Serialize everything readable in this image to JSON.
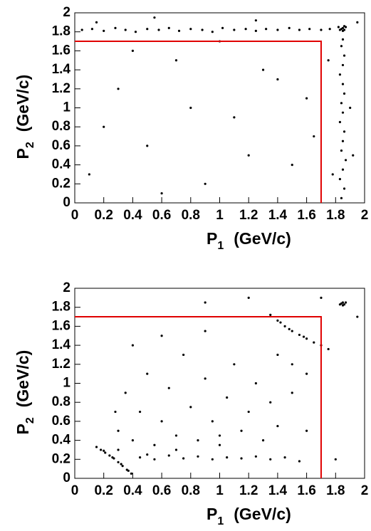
{
  "chart_data": [
    {
      "type": "scatter",
      "xlabel": "P",
      "xlabel_sub": "1",
      "xlabel_unit": "(GeV/c)",
      "ylabel": "P",
      "ylabel_sub": "2",
      "ylabel_unit": "(GeV/c)",
      "color": "#000000",
      "cut": 1.7,
      "cut_color": "#e00000",
      "xlim": [
        0,
        2
      ],
      "ylim": [
        0,
        2
      ],
      "xticks": [
        0,
        0.2,
        0.4,
        0.6,
        0.8,
        1,
        1.2,
        1.4,
        1.6,
        1.8,
        2
      ],
      "yticks": [
        0,
        0.2,
        0.4,
        0.6,
        0.8,
        1,
        1.2,
        1.4,
        1.6,
        1.8,
        2
      ],
      "x": [
        0.05,
        0.12,
        0.2,
        0.28,
        0.35,
        0.42,
        0.5,
        0.58,
        0.65,
        0.72,
        0.8,
        0.88,
        0.95,
        1.02,
        1.1,
        1.18,
        1.25,
        1.32,
        1.4,
        1.48,
        1.55,
        1.62,
        1.7,
        1.76,
        1.84,
        1.86,
        1.83,
        1.85,
        1.87,
        1.84,
        1.85,
        1.86,
        1.83,
        1.85,
        1.84,
        1.86,
        1.85,
        1.83,
        1.85,
        1.86,
        1.84,
        1.85,
        1.84,
        1.85,
        1.86,
        1.83,
        1.87,
        1.85,
        1.82,
        1.86,
        0.1,
        0.3,
        0.5,
        0.7,
        0.9,
        1.1,
        1.3,
        1.5,
        1.6,
        0.2,
        0.4,
        0.6,
        0.8,
        1.0,
        1.2,
        1.4,
        1.65,
        1.75,
        1.78,
        1.9,
        1.95,
        0.15,
        0.55,
        1.25,
        1.92
      ],
      "values": [
        1.82,
        1.83,
        1.81,
        1.84,
        1.82,
        1.8,
        1.83,
        1.82,
        1.84,
        1.81,
        1.83,
        1.82,
        1.8,
        1.84,
        1.82,
        1.83,
        1.81,
        1.83,
        1.82,
        1.84,
        1.82,
        1.83,
        1.82,
        1.83,
        0.05,
        0.15,
        0.25,
        0.35,
        0.45,
        0.55,
        0.65,
        0.75,
        0.85,
        0.95,
        1.05,
        1.15,
        1.25,
        1.35,
        1.45,
        1.55,
        1.65,
        1.72,
        1.83,
        1.84,
        1.82,
        1.82,
        1.85,
        1.81,
        1.85,
        1.86,
        0.3,
        1.2,
        0.6,
        1.5,
        0.2,
        0.9,
        1.4,
        0.4,
        1.1,
        0.8,
        1.6,
        0.1,
        1.0,
        1.7,
        0.5,
        1.3,
        0.7,
        1.5,
        0.3,
        1.0,
        1.9,
        1.9,
        1.95,
        1.92,
        0.5
      ]
    },
    {
      "type": "scatter",
      "xlabel": "P",
      "xlabel_sub": "1",
      "xlabel_unit": "(GeV/c)",
      "ylabel": "P",
      "ylabel_sub": "2",
      "ylabel_unit": "(GeV/c)",
      "color": "#000000",
      "cut": 1.7,
      "cut_color": "#e00000",
      "xlim": [
        0,
        2
      ],
      "ylim": [
        0,
        2
      ],
      "xticks": [
        0,
        0.2,
        0.4,
        0.6,
        0.8,
        1,
        1.2,
        1.4,
        1.6,
        1.8,
        2
      ],
      "yticks": [
        0,
        0.2,
        0.4,
        0.6,
        0.8,
        1,
        1.2,
        1.4,
        1.6,
        1.8,
        2
      ],
      "x": [
        0.15,
        0.18,
        0.21,
        0.24,
        0.27,
        0.3,
        0.33,
        0.36,
        0.39,
        0.2,
        0.26,
        0.32,
        0.37,
        0.45,
        0.55,
        0.65,
        0.75,
        0.85,
        0.95,
        1.05,
        1.15,
        1.25,
        1.35,
        1.45,
        1.55,
        0.3,
        0.35,
        0.4,
        0.45,
        0.5,
        0.55,
        0.6,
        0.65,
        0.7,
        0.75,
        0.8,
        0.85,
        0.9,
        0.95,
        1.0,
        1.05,
        1.1,
        1.15,
        1.2,
        1.25,
        1.3,
        1.35,
        1.4,
        1.5,
        1.6,
        0.3,
        0.4,
        0.6,
        0.9,
        0.28,
        0.5,
        0.7,
        1.0,
        1.35,
        1.4,
        1.45,
        1.5,
        1.55,
        1.6,
        1.65,
        1.7,
        1.75,
        1.42,
        1.48,
        1.58,
        1.4,
        1.5,
        1.6,
        1.84,
        1.85,
        1.86,
        1.83,
        1.85,
        1.87,
        0.9,
        1.2,
        1.7,
        1.95,
        1.8
      ],
      "values": [
        0.33,
        0.3,
        0.27,
        0.24,
        0.21,
        0.17,
        0.13,
        0.09,
        0.05,
        0.29,
        0.22,
        0.15,
        0.08,
        0.22,
        0.2,
        0.24,
        0.21,
        0.23,
        0.2,
        0.22,
        0.21,
        0.23,
        0.2,
        0.22,
        0.18,
        0.5,
        0.9,
        0.4,
        0.7,
        1.1,
        0.35,
        0.6,
        0.95,
        0.45,
        1.3,
        0.75,
        0.4,
        1.05,
        0.6,
        0.35,
        0.85,
        1.2,
        0.5,
        0.7,
        1.0,
        0.4,
        0.8,
        0.55,
        0.9,
        0.5,
        0.3,
        1.4,
        1.5,
        1.55,
        0.7,
        0.25,
        0.3,
        0.45,
        1.72,
        1.66,
        1.6,
        1.55,
        1.51,
        1.47,
        1.43,
        1.4,
        1.36,
        1.64,
        1.57,
        1.49,
        1.3,
        1.2,
        1.1,
        1.84,
        1.85,
        1.83,
        1.83,
        1.82,
        1.85,
        1.85,
        1.9,
        1.9,
        1.7,
        0.2
      ]
    }
  ]
}
